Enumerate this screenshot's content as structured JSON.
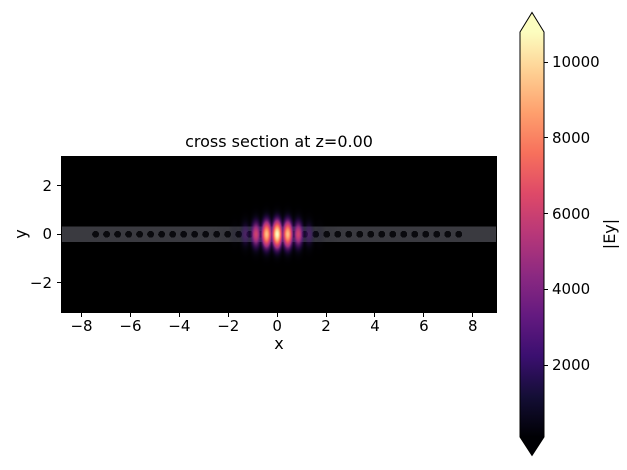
{
  "chart_data": {
    "type": "heatmap",
    "title": "cross section at z=0.00",
    "xlabel": "x",
    "ylabel": "y",
    "x_range": [
      -8.8,
      8.95
    ],
    "y_range": [
      -3.2,
      3.18
    ],
    "x_ticks": [
      -8,
      -6,
      -4,
      -2,
      0,
      2,
      4,
      6,
      8
    ],
    "y_ticks": [
      -2,
      0,
      2
    ],
    "grid": false,
    "colormap": "magma",
    "background_value_color": "#000000",
    "colorbar": {
      "label": "|Ey|",
      "ticks": [
        2000,
        4000,
        6000,
        8000,
        10000
      ],
      "vmin": 100,
      "vmax": 10800,
      "extend": "both",
      "position": "right"
    },
    "structure": {
      "background_color": "#000000",
      "waveguide": {
        "description": "horizontal dielectric strip spanning the full x range",
        "color": "#3a3a40",
        "y_half_height": 0.31
      },
      "holes": {
        "description": "periodic air holes along strip at x = ±(k+0.5)·a, mirrored about x=0",
        "color": "#0a0a0e",
        "radius": 0.14,
        "lattice_constant": 0.45,
        "count_per_side": 17,
        "positive_centers_x": [
          0.225,
          0.675,
          1.125,
          1.575,
          2.025,
          2.475,
          2.925,
          3.375,
          3.825,
          4.275,
          4.725,
          5.175,
          5.625,
          6.075,
          6.525,
          6.975,
          7.425
        ]
      }
    },
    "mode": {
      "description": "|Ey| of cavity mode localized at x=0, antinodes spaced by lattice constant",
      "peak_value": 10800,
      "envelope_sigma_x": 1.15,
      "sigma_y": 0.62,
      "y_exp": 1.8,
      "mod_min": 0.42,
      "cos_exp": 1.3,
      "lobe_spacing": 0.45
    }
  }
}
